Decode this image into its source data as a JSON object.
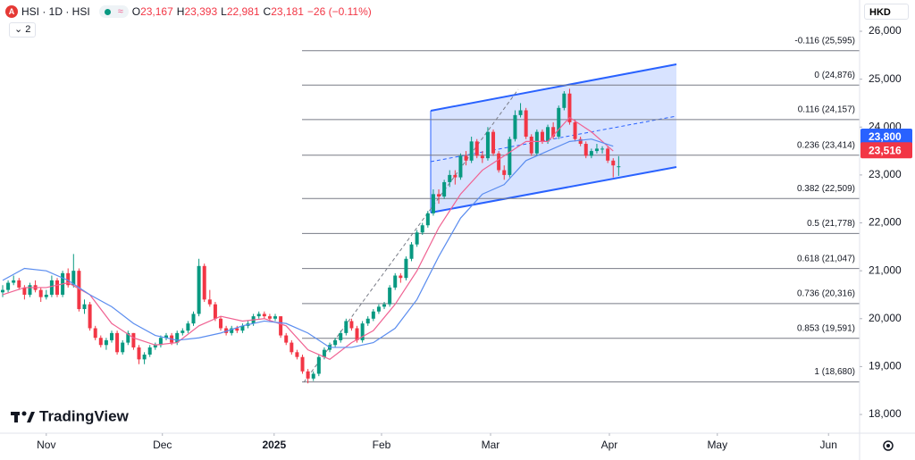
{
  "header": {
    "symbol": "HSI · 1D · HSI",
    "logo": "A",
    "ohlc": [
      {
        "key": "O",
        "value": "23,167"
      },
      {
        "key": "H",
        "value": "23,393"
      },
      {
        "key": "L",
        "value": "22,981"
      },
      {
        "key": "C",
        "value": "23,181"
      }
    ],
    "change": "−26 (−0.11%)",
    "indicators": "2",
    "currency": "HKD",
    "watermark": "TradingView"
  },
  "chart_data": {
    "type": "candlestick",
    "up_color": "#089981",
    "down_color": "#f23645",
    "xlim": [
      -0.49,
      157.2
    ],
    "ylim": [
      17609,
      26653
    ],
    "xticks": [
      {
        "value": 8.0,
        "label": "Nov"
      },
      {
        "value": 29.3,
        "label": "Dec"
      },
      {
        "value": 49.8,
        "label": "2025"
      },
      {
        "value": 69.5,
        "label": "Feb"
      },
      {
        "value": 89.5,
        "label": "Mar"
      },
      {
        "value": 111.3,
        "label": "Apr"
      },
      {
        "value": 131.1,
        "label": "May"
      },
      {
        "value": 151.5,
        "label": "Jun"
      }
    ],
    "yticks": [
      {
        "value": 18000,
        "label": "18,000"
      },
      {
        "value": 19000,
        "label": "19,000"
      },
      {
        "value": 20000,
        "label": "20,000"
      },
      {
        "value": 21000,
        "label": "21,000"
      },
      {
        "value": 22000,
        "label": "22,000"
      },
      {
        "value": 23000,
        "label": "23,000"
      },
      {
        "value": 24000,
        "label": "24,000"
      },
      {
        "value": 25000,
        "label": "25,000"
      },
      {
        "value": 26000,
        "label": "26,000"
      }
    ],
    "candles": [
      [
        20550,
        20700,
        20450,
        20600
      ],
      [
        20600,
        20800,
        20550,
        20750
      ],
      [
        20750,
        20900,
        20700,
        20800
      ],
      [
        20800,
        20850,
        20600,
        20650
      ],
      [
        20650,
        20700,
        20400,
        20500
      ],
      [
        20500,
        20750,
        20450,
        20700
      ],
      [
        20700,
        20800,
        20550,
        20600
      ],
      [
        20600,
        20650,
        20350,
        20450
      ],
      [
        20450,
        20600,
        20400,
        20500
      ],
      [
        20500,
        20900,
        20450,
        20800
      ],
      [
        20800,
        20850,
        20450,
        20500
      ],
      [
        20500,
        21000,
        20450,
        20950
      ],
      [
        20950,
        21050,
        20650,
        20700
      ],
      [
        20700,
        21350,
        20650,
        21000
      ],
      [
        21000,
        21050,
        20150,
        20200
      ],
      [
        20200,
        20400,
        20100,
        20300
      ],
      [
        20300,
        20350,
        19750,
        19800
      ],
      [
        19800,
        19850,
        19550,
        19600
      ],
      [
        19600,
        19650,
        19400,
        19450
      ],
      [
        19450,
        19600,
        19350,
        19550
      ],
      [
        19550,
        19750,
        19500,
        19700
      ],
      [
        19700,
        19750,
        19250,
        19300
      ],
      [
        19300,
        19550,
        19250,
        19500
      ],
      [
        19500,
        19750,
        19450,
        19700
      ],
      [
        19700,
        19700,
        19350,
        19400
      ],
      [
        19400,
        19450,
        19050,
        19150
      ],
      [
        19150,
        19300,
        19050,
        19250
      ],
      [
        19250,
        19450,
        19200,
        19400
      ],
      [
        19400,
        19500,
        19350,
        19450
      ],
      [
        19450,
        19650,
        19400,
        19600
      ],
      [
        19600,
        19700,
        19550,
        19650
      ],
      [
        19650,
        19700,
        19450,
        19500
      ],
      [
        19500,
        19750,
        19450,
        19700
      ],
      [
        19700,
        19800,
        19650,
        19750
      ],
      [
        19750,
        19950,
        19700,
        19900
      ],
      [
        19900,
        20150,
        19850,
        20100
      ],
      [
        20100,
        21250,
        20050,
        21100
      ],
      [
        21100,
        21150,
        20350,
        20400
      ],
      [
        20400,
        20600,
        20250,
        20300
      ],
      [
        20300,
        20350,
        19950,
        20000
      ],
      [
        20000,
        20050,
        19750,
        19800
      ],
      [
        19800,
        19850,
        19650,
        19700
      ],
      [
        19700,
        19850,
        19650,
        19800
      ],
      [
        19800,
        19850,
        19700,
        19750
      ],
      [
        19750,
        19900,
        19700,
        19850
      ],
      [
        19850,
        19950,
        19800,
        19900
      ],
      [
        19900,
        20100,
        19850,
        20050
      ],
      [
        20050,
        20150,
        20000,
        20100
      ],
      [
        20100,
        20150,
        20000,
        20050
      ],
      [
        20050,
        20100,
        19950,
        20000
      ],
      [
        20000,
        20100,
        19950,
        20050
      ],
      [
        20050,
        20050,
        19600,
        19650
      ],
      [
        19650,
        19700,
        19450,
        19500
      ],
      [
        19500,
        19550,
        19250,
        19300
      ],
      [
        19300,
        19350,
        19150,
        19200
      ],
      [
        19200,
        19250,
        18850,
        18900
      ],
      [
        18900,
        18950,
        18650,
        18750
      ],
      [
        18750,
        18900,
        18700,
        18850
      ],
      [
        18850,
        19250,
        18800,
        19200
      ],
      [
        19200,
        19400,
        19150,
        19350
      ],
      [
        19350,
        19500,
        19300,
        19450
      ],
      [
        19450,
        19600,
        19400,
        19550
      ],
      [
        19550,
        19750,
        19500,
        19700
      ],
      [
        19700,
        20000,
        19650,
        19950
      ],
      [
        19950,
        20000,
        19750,
        19800
      ],
      [
        19800,
        19850,
        19500,
        19550
      ],
      [
        19550,
        19950,
        19500,
        19900
      ],
      [
        19900,
        20050,
        19850,
        20000
      ],
      [
        20000,
        20200,
        19950,
        20150
      ],
      [
        20150,
        20300,
        20100,
        20250
      ],
      [
        20250,
        20350,
        20200,
        20300
      ],
      [
        20300,
        20700,
        20250,
        20650
      ],
      [
        20650,
        20950,
        20600,
        20900
      ],
      [
        20900,
        20950,
        20750,
        20850
      ],
      [
        20850,
        21300,
        20800,
        21250
      ],
      [
        21250,
        21600,
        21200,
        21550
      ],
      [
        21550,
        21850,
        21500,
        21800
      ],
      [
        21800,
        22000,
        21750,
        21950
      ],
      [
        21950,
        22250,
        21900,
        22200
      ],
      [
        22200,
        22700,
        22150,
        22600
      ],
      [
        22600,
        22700,
        22400,
        22550
      ],
      [
        22550,
        22900,
        22500,
        22850
      ],
      [
        22850,
        23100,
        22750,
        23000
      ],
      [
        23000,
        23100,
        22800,
        22950
      ],
      [
        22950,
        23450,
        22900,
        23400
      ],
      [
        23400,
        23500,
        23200,
        23300
      ],
      [
        23300,
        23800,
        23250,
        23700
      ],
      [
        23700,
        23750,
        23350,
        23400
      ],
      [
        23400,
        23500,
        23250,
        23350
      ],
      [
        23350,
        24000,
        23300,
        23900
      ],
      [
        23900,
        23950,
        23400,
        23450
      ],
      [
        23450,
        23500,
        23050,
        23100
      ],
      [
        23100,
        23200,
        22900,
        23000
      ],
      [
        23000,
        23800,
        22950,
        23750
      ],
      [
        23750,
        24350,
        23700,
        24250
      ],
      [
        24250,
        24500,
        24200,
        24350
      ],
      [
        24350,
        24400,
        23750,
        23800
      ],
      [
        23800,
        23850,
        23400,
        23450
      ],
      [
        23450,
        23950,
        23400,
        23900
      ],
      [
        23900,
        23950,
        23650,
        23700
      ],
      [
        23700,
        24050,
        23650,
        24000
      ],
      [
        24000,
        24100,
        23750,
        23800
      ],
      [
        23800,
        24450,
        23750,
        24400
      ],
      [
        24400,
        24750,
        24350,
        24700
      ],
      [
        24700,
        24800,
        24050,
        24100
      ],
      [
        24100,
        24150,
        23700,
        23750
      ],
      [
        23750,
        23800,
        23600,
        23650
      ],
      [
        23650,
        23700,
        23350,
        23400
      ],
      [
        23400,
        23550,
        23350,
        23500
      ],
      [
        23500,
        23650,
        23450,
        23550
      ],
      [
        23550,
        23600,
        23450,
        23550
      ],
      [
        23550,
        23600,
        23250,
        23300
      ],
      [
        23300,
        23350,
        22950,
        23200
      ],
      [
        23167,
        23393,
        22981,
        23181
      ]
    ],
    "series": [
      {
        "color": "#f06292",
        "x": [
          0,
          4,
          8,
          12,
          16,
          20,
          24,
          28,
          32,
          36,
          40,
          44,
          48,
          52,
          56,
          60,
          64,
          68,
          72,
          76,
          80,
          84,
          88,
          92,
          96,
          100,
          104,
          108,
          112
        ],
        "values": [
          20500,
          20650,
          20650,
          20750,
          20500,
          19900,
          19600,
          19450,
          19500,
          19850,
          20050,
          19950,
          20000,
          19850,
          19350,
          19150,
          19500,
          19750,
          20300,
          21000,
          21900,
          22600,
          23100,
          23400,
          23700,
          23700,
          24200,
          23900,
          23500
        ]
      },
      {
        "color": "#5b8def",
        "x": [
          0,
          4,
          8,
          12,
          16,
          20,
          24,
          28,
          32,
          36,
          40,
          44,
          48,
          52,
          56,
          60,
          64,
          68,
          72,
          76,
          80,
          84,
          88,
          92,
          96,
          100,
          104,
          108,
          112
        ],
        "values": [
          20800,
          21050,
          21000,
          20800,
          20500,
          20250,
          19900,
          19650,
          19550,
          19600,
          19700,
          19850,
          19950,
          19900,
          19700,
          19400,
          19400,
          19500,
          19800,
          20400,
          21300,
          22100,
          22600,
          22800,
          23300,
          23500,
          23700,
          23750,
          23600
        ]
      }
    ],
    "fib_levels": [
      {
        "label": "-0.116 (25,595)",
        "value": 25595
      },
      {
        "label": "0 (24,876)",
        "value": 24876
      },
      {
        "label": "0.116 (24,157)",
        "value": 24157
      },
      {
        "label": "0.236 (23,414)",
        "value": 23414
      },
      {
        "label": "0.382 (22,509)",
        "value": 22509
      },
      {
        "label": "0.5 (21,778)",
        "value": 21778
      },
      {
        "label": "0.618 (21,047)",
        "value": 21047
      },
      {
        "label": "0.736 (20,316)",
        "value": 20316
      },
      {
        "label": "0.853 (19,591)",
        "value": 19591
      },
      {
        "label": "1 (18,680)",
        "value": 18680
      }
    ],
    "price_tags": [
      {
        "value": 23800,
        "label": "23,800",
        "color": "#2962ff"
      },
      {
        "value": 23516,
        "label": "23,516",
        "color": "#f23645"
      }
    ]
  }
}
